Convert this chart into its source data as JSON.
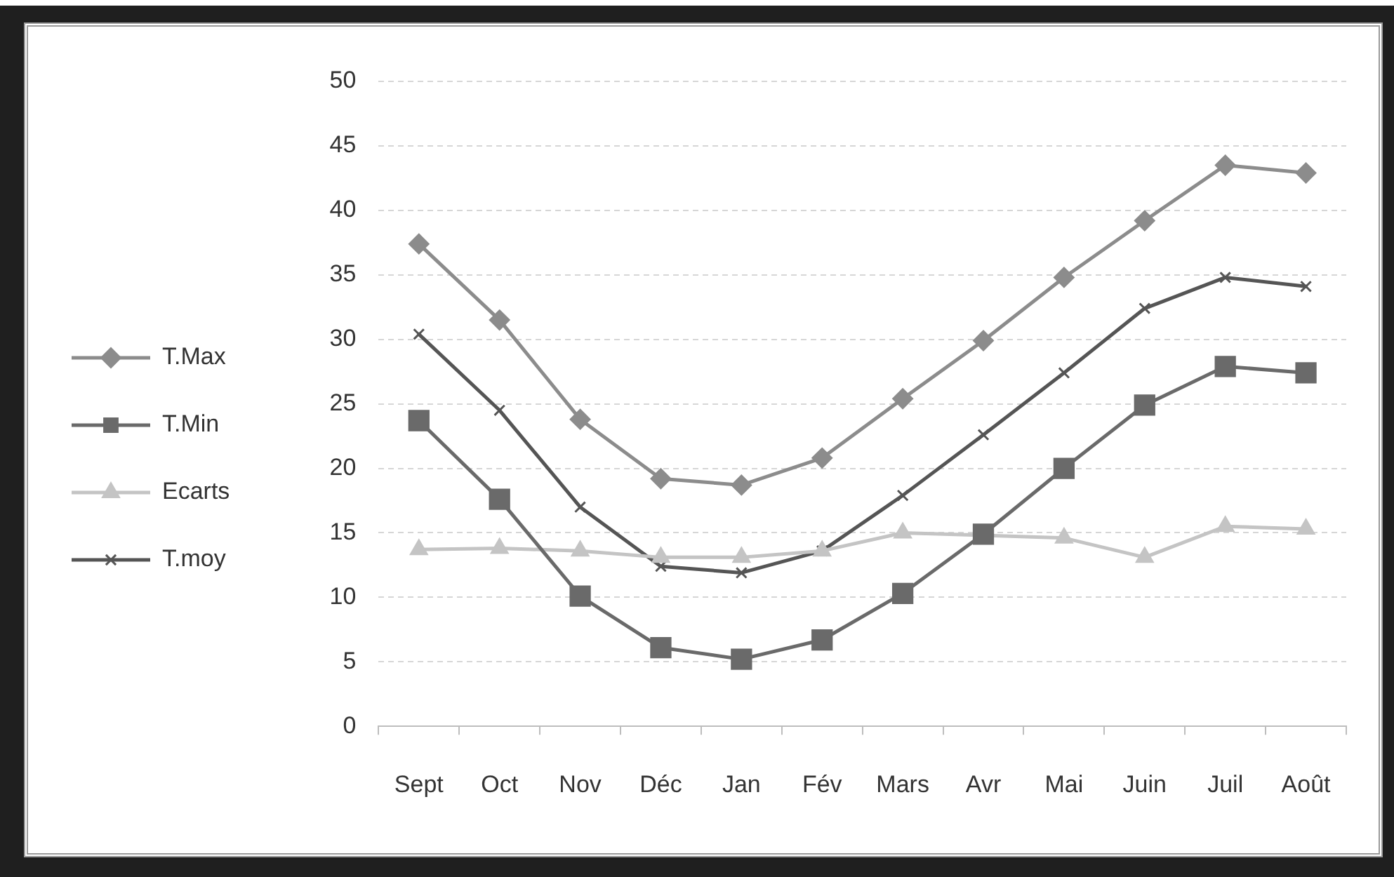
{
  "chart_data": {
    "type": "line",
    "categories": [
      "Sept",
      "Oct",
      "Nov",
      "Déc",
      "Jan",
      "Fév",
      "Mars",
      "Avr",
      "Mai",
      "Juin",
      "Juil",
      "Août"
    ],
    "series": [
      {
        "name": "T.Max",
        "color": "#8c8c8c",
        "marker": "diamond",
        "values": [
          37.4,
          31.5,
          23.8,
          19.2,
          18.7,
          20.8,
          25.4,
          29.9,
          34.8,
          39.2,
          43.5,
          42.9
        ]
      },
      {
        "name": "T.Min",
        "color": "#6a6a6a",
        "marker": "square",
        "values": [
          23.7,
          17.6,
          10.1,
          6.1,
          5.2,
          6.7,
          10.3,
          14.9,
          20.0,
          24.9,
          27.9,
          27.4
        ]
      },
      {
        "name": "Ecarts",
        "color": "#c4c4c4",
        "marker": "triangle",
        "values": [
          13.7,
          13.8,
          13.6,
          13.1,
          13.1,
          13.6,
          15.0,
          14.8,
          14.6,
          13.1,
          15.5,
          15.3
        ]
      },
      {
        "name": "T.moy",
        "color": "#555555",
        "marker": "cross",
        "values": [
          30.4,
          24.5,
          17.0,
          12.4,
          11.9,
          13.6,
          17.9,
          22.6,
          27.4,
          32.4,
          34.8,
          34.1
        ]
      }
    ],
    "ylim": [
      0,
      50
    ],
    "yticks": [
      0,
      5,
      10,
      15,
      20,
      25,
      30,
      35,
      40,
      45,
      50
    ],
    "grid": "y",
    "legend": "left"
  }
}
